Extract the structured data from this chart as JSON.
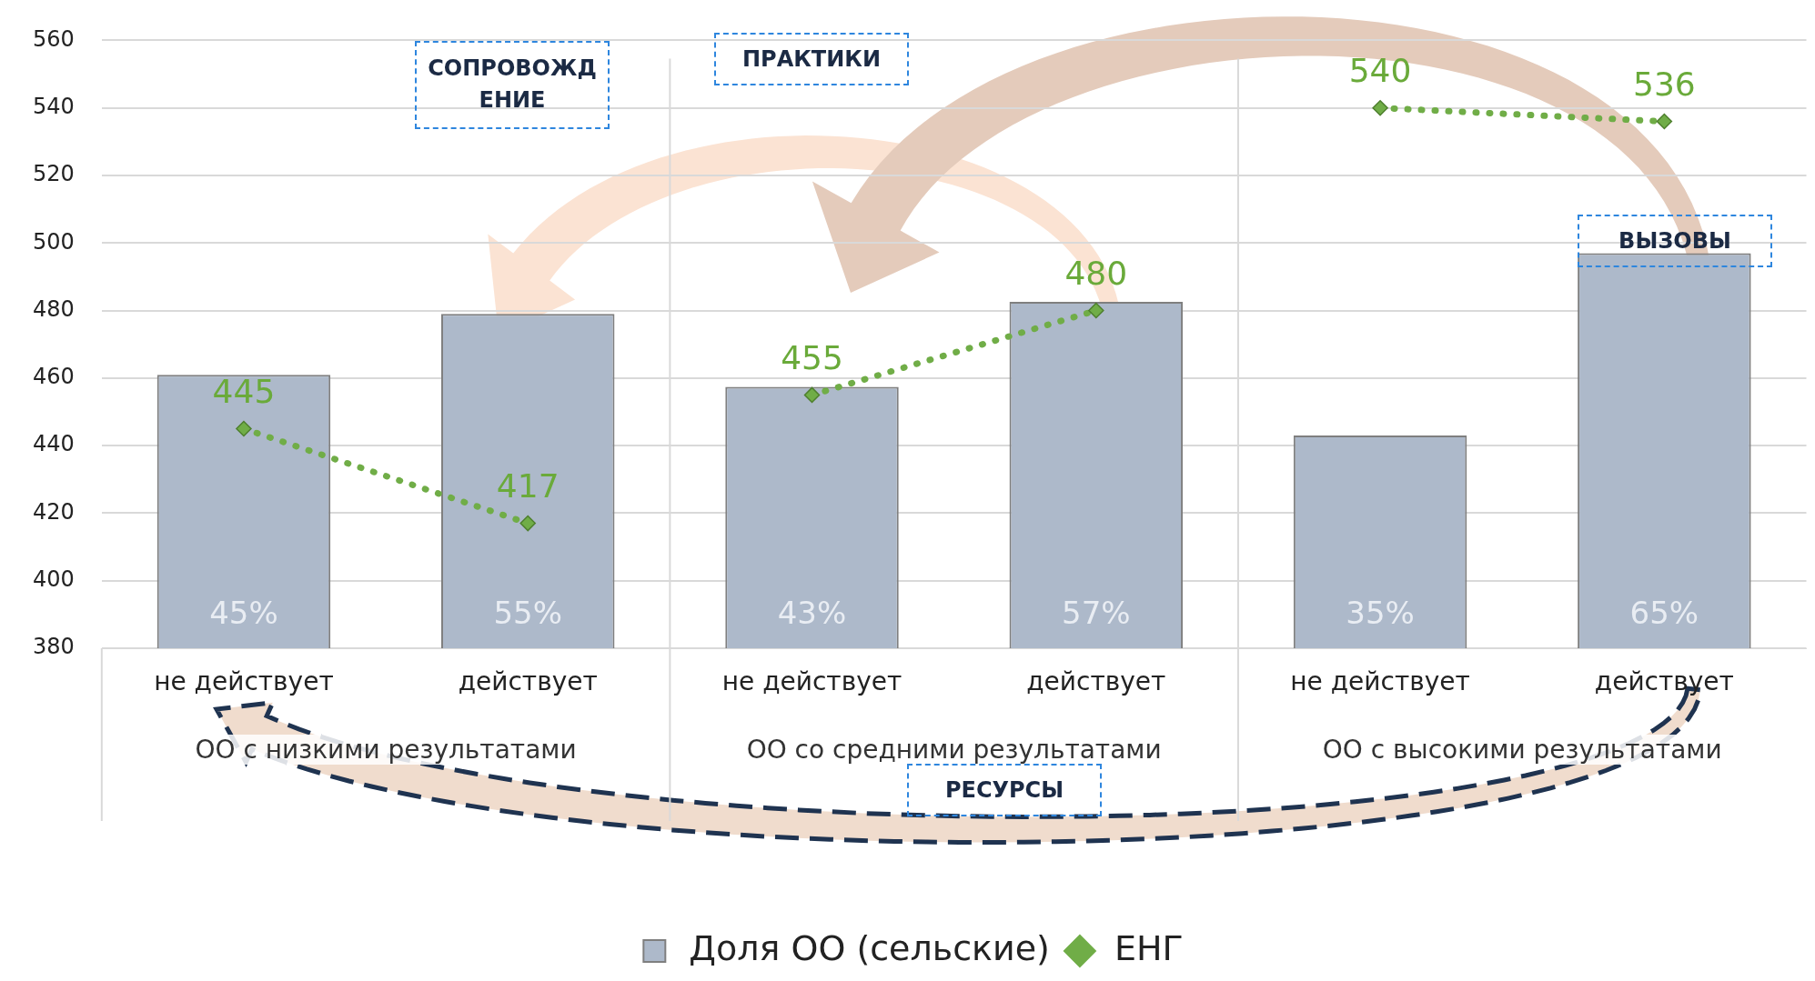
{
  "chart_data": {
    "type": "bar",
    "categories": [
      "не действует",
      "действует",
      "не действует",
      "действует",
      "не действует",
      "действует"
    ],
    "series": [
      {
        "name": "Доля ОО (сельские)",
        "axis": "y2",
        "color": "#adb9ca",
        "values": [
          45,
          55,
          43,
          57,
          35,
          65
        ],
        "value_labels": [
          "45%",
          "55%",
          "43%",
          "57%",
          "35%",
          "65%"
        ]
      },
      {
        "name": "ЕНГ",
        "type": "line",
        "color": "#70ad47",
        "values": [
          445,
          417,
          null,
          null,
          null,
          null
        ],
        "marker": "diamond",
        "line_style": "dotted"
      },
      {
        "type": "line",
        "color": "#70ad47",
        "values": [
          null,
          null,
          455,
          480,
          null,
          null
        ],
        "marker": "diamond",
        "line_style": "dotted"
      },
      {
        "type": "line",
        "color": "#70ad47",
        "values": [
          null,
          null,
          null,
          null,
          540,
          536
        ],
        "marker": "diamond",
        "line_style": "dotted"
      }
    ],
    "ylim": [
      380,
      560
    ],
    "yticks": [
      380,
      400,
      420,
      440,
      460,
      480,
      500,
      520,
      540,
      560
    ],
    "grid": "y",
    "legend": "bottom",
    "data_labels": true,
    "annotations": [
      "ОО с низкими результатами",
      "ОО со средними результатами",
      "ОО с высокими результатами",
      "СОПРОВОЖДЕНИЕ",
      "ПРАКТИКИ",
      "ВЫЗОВЫ",
      "РЕСУРСЫ"
    ]
  }
}
